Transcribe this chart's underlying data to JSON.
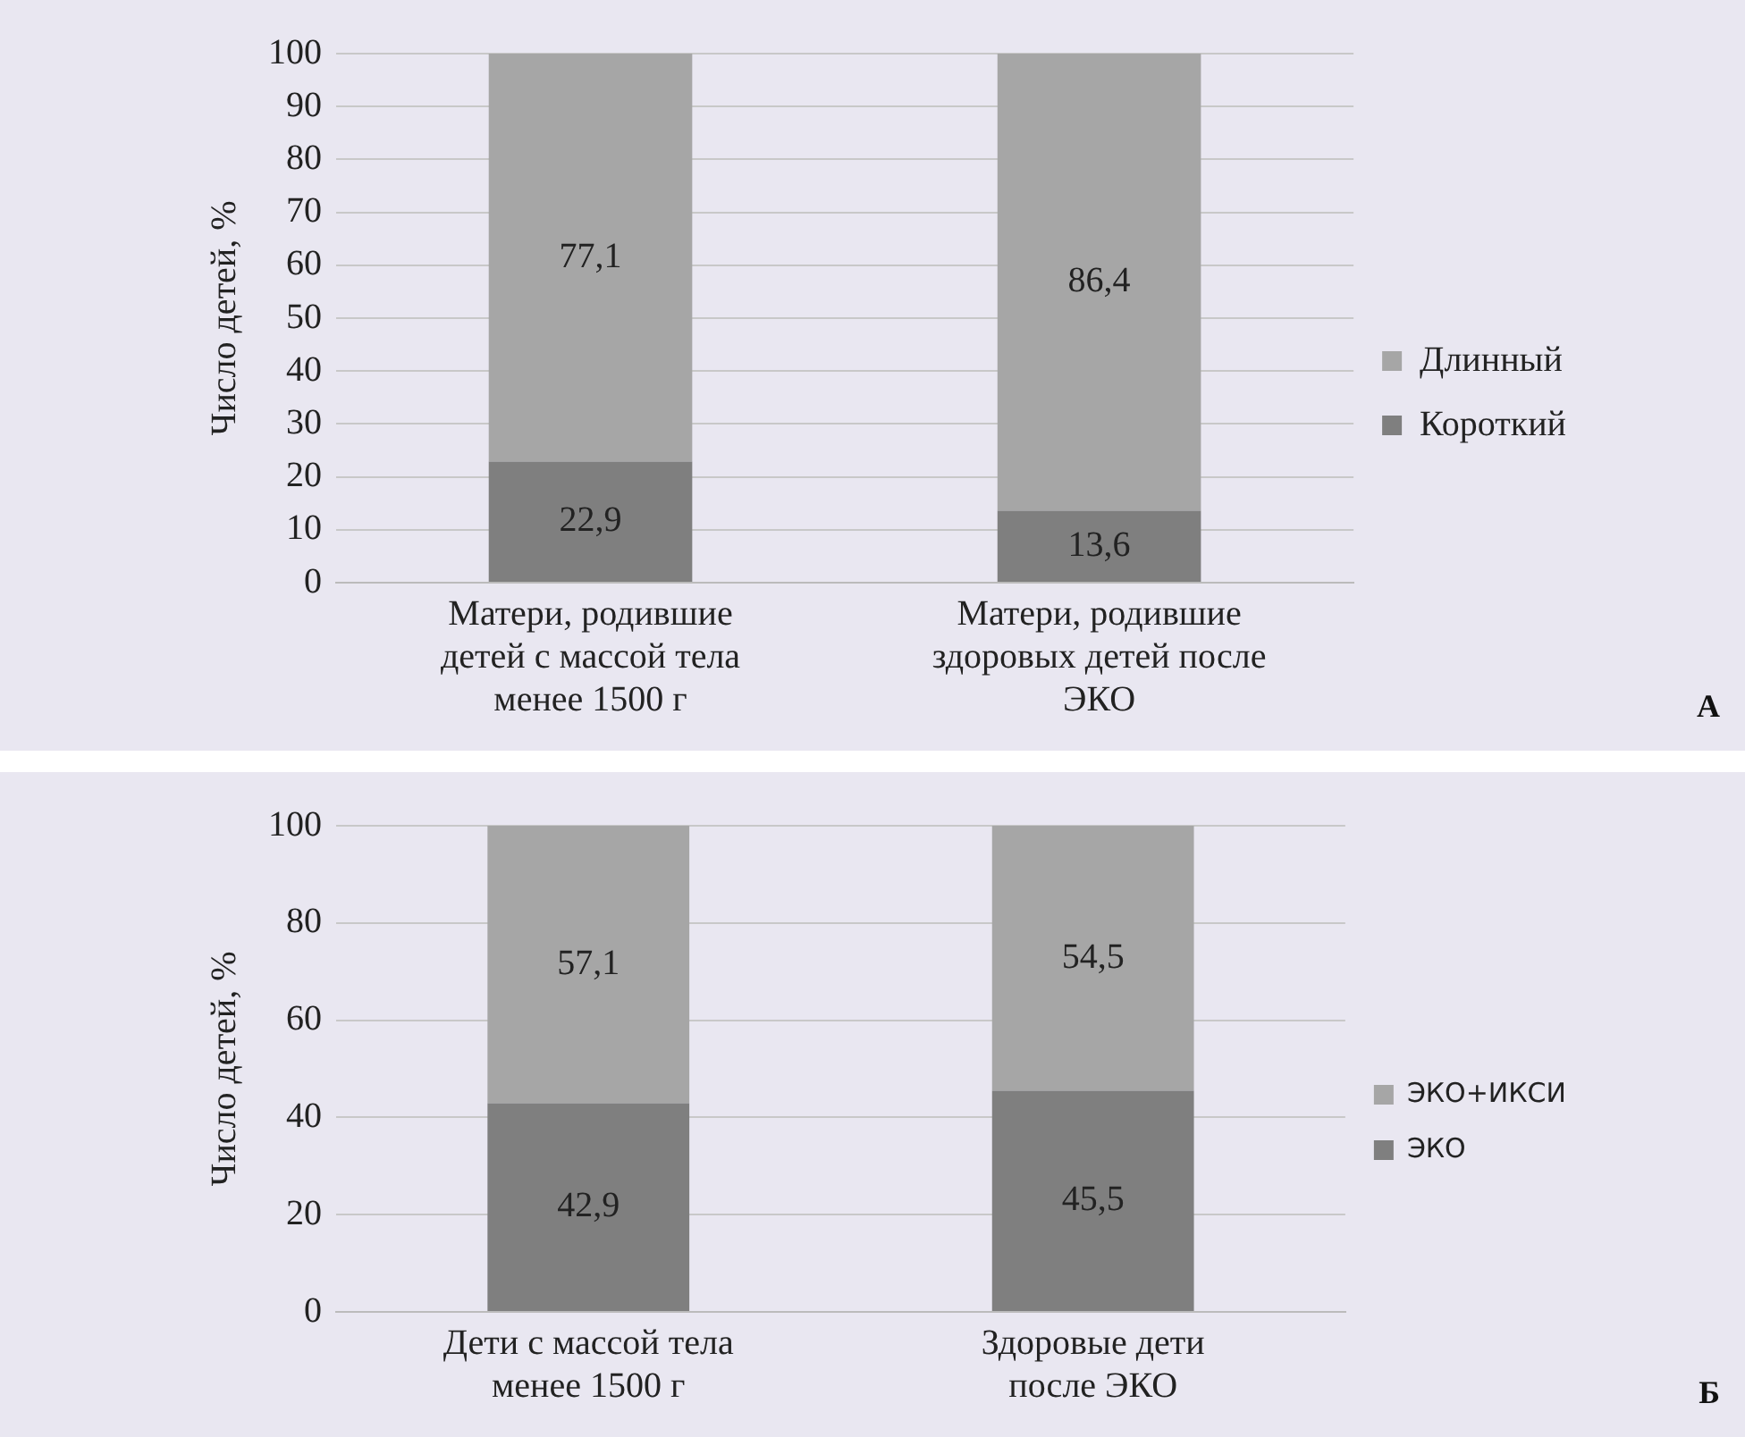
{
  "chart_data": [
    {
      "type": "bar",
      "stacked": true,
      "ylabel": "Число детей, %",
      "categories": [
        "Матери, родившие детей с массой тела менее 1500 г",
        "Матери, родившие здоровых детей после ЭКО"
      ],
      "series": [
        {
          "name": "Короткий",
          "color": "#7f7f7f",
          "values": [
            22.9,
            13.6
          ],
          "value_labels": [
            "22,9",
            "13,6"
          ]
        },
        {
          "name": "Длинный",
          "color": "#a6a6a6",
          "values": [
            77.1,
            86.4
          ],
          "value_labels": [
            "77,1",
            "86,4"
          ]
        }
      ],
      "ylim": [
        0,
        100
      ],
      "yticks": [
        0,
        10,
        20,
        30,
        40,
        50,
        60,
        70,
        80,
        90,
        100
      ],
      "grid": "y",
      "legend": "right",
      "annotations": [
        "А"
      ]
    },
    {
      "type": "bar",
      "stacked": true,
      "ylabel": "Число детей, %",
      "categories": [
        "Дети с массой тела менее 1500 г",
        "Здоровые дети после ЭКО"
      ],
      "series": [
        {
          "name": "ЭКО",
          "color": "#7f7f7f",
          "values": [
            42.9,
            45.5
          ],
          "value_labels": [
            "42,9",
            "45,5"
          ]
        },
        {
          "name": "ЭКО+ИКСИ",
          "color": "#a6a6a6",
          "values": [
            57.1,
            54.5
          ],
          "value_labels": [
            "57,1",
            "54,5"
          ]
        }
      ],
      "ylim": [
        0,
        100
      ],
      "yticks": [
        0,
        20,
        40,
        60,
        80,
        100
      ],
      "grid": "y",
      "legend": "right",
      "annotations": [
        "Б"
      ]
    }
  ]
}
